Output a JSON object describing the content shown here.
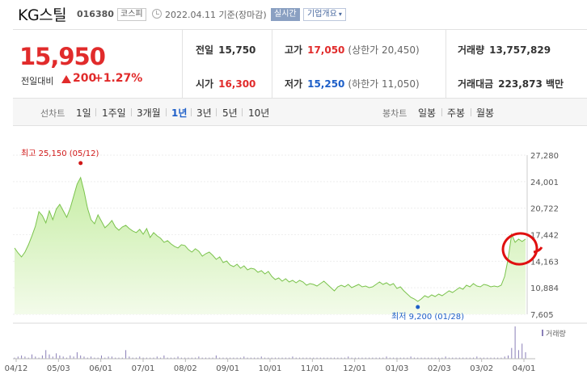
{
  "header": {
    "name": "KG스틸",
    "code": "016380",
    "market": "코스피",
    "date": "2022.04.11 기준(장마감)",
    "realtime": "실시간",
    "company_info": "기업개요"
  },
  "price": {
    "current": "15,950",
    "change_label": "전일대비",
    "change": "200",
    "change_pct": "+1.27%"
  },
  "stats": {
    "prev_label": "전일",
    "prev": "15,750",
    "open_label": "시가",
    "open": "16,300",
    "high_label": "고가",
    "high": "17,050",
    "upper_limit": "(상한가 20,450)",
    "low_label": "저가",
    "low": "15,250",
    "lower_limit": "(하한가 11,050)",
    "volume_label": "거래량",
    "volume": "13,757,829",
    "amount_label": "거래대금",
    "amount": "223,873 백만"
  },
  "tabs": {
    "line_label": "선차트",
    "line": [
      "1일",
      "1주일",
      "3개월",
      "1년",
      "3년",
      "5년",
      "10년"
    ],
    "active": "1년",
    "candle_label": "봉차트",
    "candle": [
      "일봉",
      "주봉",
      "월봉"
    ]
  },
  "chart_data": {
    "type": "area",
    "y_ticks": [
      "27,280",
      "24,001",
      "20,722",
      "17,442",
      "14,163",
      "10,884",
      "7,605"
    ],
    "ylim": [
      7605,
      27280
    ],
    "x_ticks": [
      "04/12",
      "05/03",
      "06/01",
      "07/01",
      "08/02",
      "09/01",
      "10/01",
      "11/01",
      "12/01",
      "01/03",
      "02/03",
      "03/02",
      "04/01"
    ],
    "high_annotation": "최고 25,150 (05/12)",
    "low_annotation": "최저 9,200 (01/28)",
    "volume_label": "거래량",
    "series": [
      {
        "values": [
          15800,
          15200,
          14700,
          15300,
          16200,
          17300,
          18500,
          20300,
          19800,
          18900,
          20400,
          19300,
          20600,
          21200,
          20400,
          19600,
          20700,
          22200,
          23700,
          24500,
          22800,
          20700,
          19300,
          18800,
          19900,
          19100,
          18300,
          18700,
          19200,
          18400,
          18000,
          18400,
          18600,
          18200,
          17900,
          17700,
          18100,
          17500,
          18200,
          17100,
          17700,
          17300,
          17000,
          16500,
          16700,
          16300,
          16000,
          15800,
          16200,
          16100,
          15600,
          15300,
          15700,
          15400,
          14800,
          15100,
          15300,
          14900,
          14400,
          14700,
          14000,
          14200,
          13700,
          13500,
          13800,
          13300,
          13600,
          13100,
          13300,
          13200,
          12800,
          13000,
          12600,
          12900,
          12300,
          11900,
          12100,
          11700,
          12000,
          11600,
          11800,
          11500,
          11800,
          11600,
          11200,
          11400,
          11300,
          11100,
          11400,
          11700,
          11300,
          10900,
          10500,
          11000,
          11200,
          11000,
          11300,
          10900,
          11100,
          11300,
          11000,
          11100,
          10900,
          11000,
          11300,
          11600,
          11300,
          11500,
          11200,
          11400,
          10800,
          11000,
          10500,
          10100,
          9700,
          9500,
          9200,
          9500,
          9900,
          9700,
          10000,
          9800,
          10100,
          9900,
          10200,
          10500,
          10300,
          10600,
          10900,
          10700,
          11200,
          11000,
          11400,
          11100,
          11000,
          11300,
          11200,
          11000,
          11100,
          11000,
          11200,
          12300,
          14500,
          17500,
          16500,
          16900,
          16600,
          16900
        ]
      }
    ],
    "volume": [
      1,
      2,
      3,
      2,
      1,
      4,
      2,
      1,
      3,
      8,
      4,
      2,
      5,
      3,
      2,
      1,
      3,
      2,
      6,
      3,
      2,
      1,
      2,
      1,
      1,
      3,
      1,
      2,
      2,
      1,
      1,
      1,
      8,
      2,
      1,
      1,
      2,
      1,
      1,
      1,
      1,
      2,
      1,
      3,
      1,
      1,
      1,
      2,
      1,
      1,
      1,
      1,
      1,
      2,
      1,
      1,
      1,
      1,
      3,
      1,
      1,
      1,
      1,
      1,
      1,
      1,
      2,
      1,
      1,
      1,
      1,
      2,
      1,
      1,
      1,
      1,
      1,
      1,
      1,
      1,
      2,
      1,
      1,
      1,
      1,
      1,
      1,
      1,
      1,
      1,
      1,
      1,
      1,
      1,
      1,
      1,
      2,
      1,
      1,
      1,
      1,
      1,
      1,
      1,
      1,
      1,
      1,
      2,
      1,
      1,
      1,
      1,
      1,
      1,
      2,
      1,
      1,
      1,
      1,
      1,
      1,
      1,
      1,
      1,
      2,
      1,
      1,
      1,
      1,
      1,
      1,
      1,
      1,
      2,
      1,
      1,
      1,
      1,
      1,
      1,
      1,
      2,
      3,
      10,
      30,
      8,
      14,
      6
    ]
  }
}
